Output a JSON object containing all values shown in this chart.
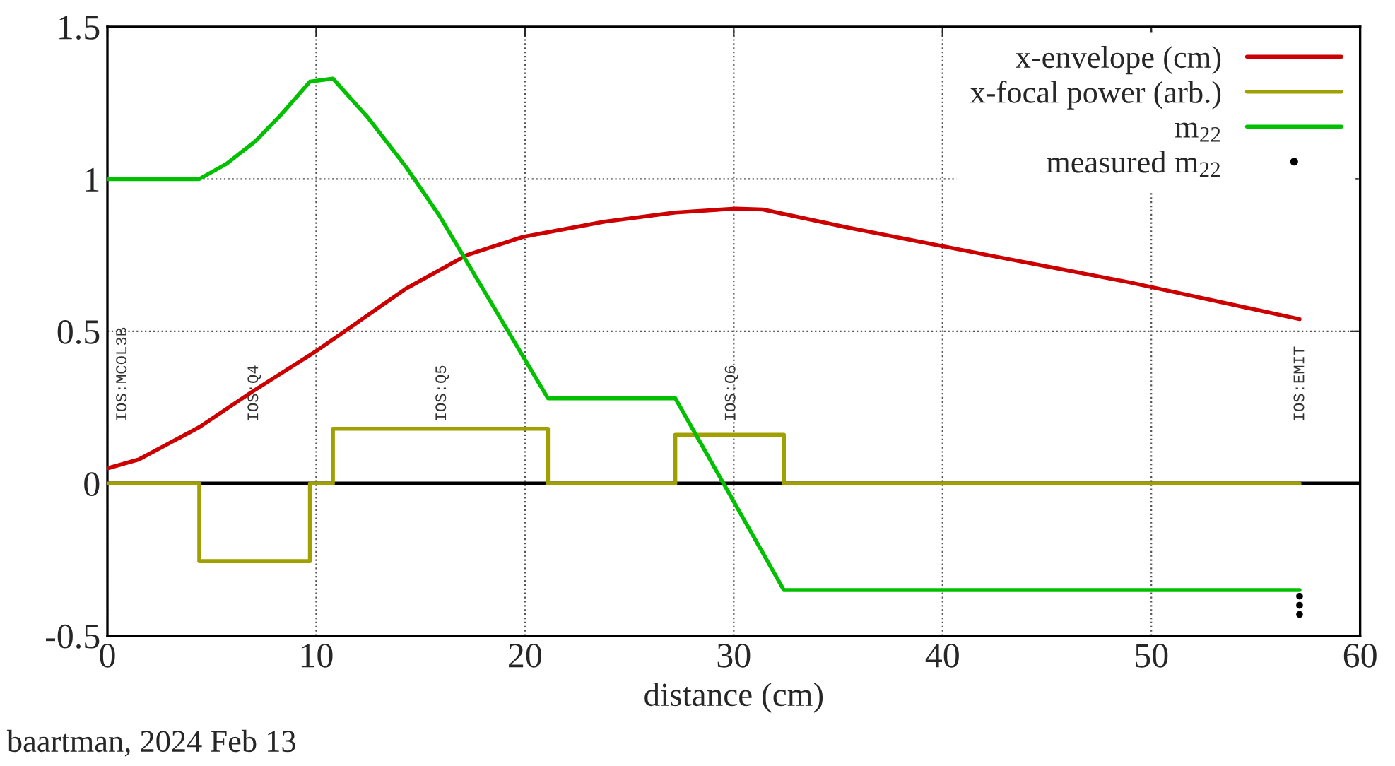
{
  "chart_data": {
    "type": "line",
    "xlabel": "distance (cm)",
    "xlim": [
      0,
      60
    ],
    "xticks": [
      0,
      10,
      20,
      30,
      40,
      50,
      60
    ],
    "ylim": [
      -0.5,
      1.5
    ],
    "yticks": [
      -0.5,
      0,
      0.5,
      1,
      1.5
    ],
    "grid": true,
    "legend": "top right",
    "series": [
      {
        "name": "x-envelope (cm)",
        "color": "#cc0000",
        "x": [
          0,
          1.5,
          4.4,
          6.9,
          10,
          14.3,
          17.2,
          19.9,
          23.8,
          27.2,
          30.1,
          31.4,
          35.5,
          42.2,
          49,
          57.1
        ],
        "values": [
          0.05,
          0.079,
          0.185,
          0.3,
          0.435,
          0.64,
          0.75,
          0.81,
          0.86,
          0.89,
          0.903,
          0.9,
          0.84,
          0.75,
          0.66,
          0.54
        ]
      },
      {
        "name": "x-focal power (arb.)",
        "color": "#a0a000",
        "x": [
          0,
          4.4,
          4.4,
          9.7,
          9.7,
          10.8,
          10.8,
          21.1,
          21.1,
          27.2,
          27.2,
          32.4,
          32.4,
          57.1
        ],
        "values": [
          0,
          0,
          -0.255,
          -0.255,
          0,
          0,
          0.18,
          0.18,
          0,
          0,
          0.16,
          0.16,
          0,
          0
        ]
      },
      {
        "name": "m$_{22}$",
        "color": "#00c000",
        "x": [
          0,
          4.4,
          5.7,
          7.1,
          8.3,
          9.7,
          10.8,
          12.5,
          14.3,
          15.9,
          21.1,
          27.2,
          32.4,
          57.1
        ],
        "values": [
          1,
          1,
          1.05,
          1.125,
          1.21,
          1.32,
          1.33,
          1.2,
          1.04,
          0.88,
          0.28,
          0.28,
          -0.35,
          -0.35
        ]
      },
      {
        "name": "measured m$_{22}$",
        "type": "scatter",
        "color": "#000000",
        "marker": "circle",
        "x": [
          57.1,
          57.1,
          57.1
        ],
        "values": [
          -0.37,
          -0.4,
          -0.43
        ]
      }
    ],
    "ref_lines": [
      {
        "axis": "y",
        "value": 0,
        "color": "#000000"
      }
    ],
    "annotations": [
      "IOS:MCOL3B",
      "IOS:Q4",
      "IOS:Q5",
      "IOS:Q6",
      "IOS:EMIT",
      "baartman, 2024 Feb 13"
    ]
  }
}
